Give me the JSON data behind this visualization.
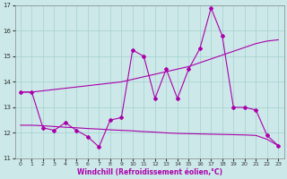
{
  "title": "",
  "xlabel": "Windchill (Refroidissement éolien,°C)",
  "ylabel": "",
  "xlim": [
    -0.5,
    23.5
  ],
  "ylim": [
    11,
    17
  ],
  "yticks": [
    11,
    12,
    13,
    14,
    15,
    16,
    17
  ],
  "xticks": [
    0,
    1,
    2,
    3,
    4,
    5,
    6,
    7,
    8,
    9,
    10,
    11,
    12,
    13,
    14,
    15,
    16,
    17,
    18,
    19,
    20,
    21,
    22,
    23
  ],
  "background_color": "#cce8e8",
  "grid_color": "#aad4d4",
  "line_color": "#aa00aa",
  "line1_x": [
    0,
    1,
    2,
    3,
    4,
    5,
    6,
    7,
    8,
    9,
    10,
    11,
    12,
    13,
    14,
    15,
    16,
    17,
    18,
    19,
    20,
    21,
    22,
    23
  ],
  "line1_y": [
    13.6,
    13.6,
    13.65,
    13.7,
    13.75,
    13.8,
    13.85,
    13.9,
    13.95,
    14.0,
    14.1,
    14.2,
    14.3,
    14.4,
    14.5,
    14.6,
    14.75,
    14.9,
    15.05,
    15.2,
    15.35,
    15.5,
    15.6,
    15.65
  ],
  "line2_x": [
    0,
    1,
    2,
    3,
    4,
    5,
    6,
    7,
    8,
    9,
    10,
    11,
    12,
    13,
    14,
    15,
    16,
    17,
    18,
    19,
    20,
    21,
    22,
    23
  ],
  "line2_y": [
    13.6,
    13.6,
    12.2,
    12.1,
    12.4,
    12.1,
    11.85,
    11.45,
    12.5,
    12.6,
    15.25,
    15.0,
    13.35,
    14.5,
    13.35,
    14.5,
    15.3,
    16.9,
    15.8,
    13.0,
    13.0,
    12.9,
    11.9,
    11.5
  ],
  "line3_x": [
    0,
    1,
    2,
    3,
    4,
    5,
    6,
    7,
    8,
    9,
    10,
    11,
    12,
    13,
    14,
    15,
    16,
    17,
    18,
    19,
    20,
    21,
    22,
    23
  ],
  "line3_y": [
    12.3,
    12.3,
    12.28,
    12.25,
    12.22,
    12.2,
    12.17,
    12.15,
    12.12,
    12.1,
    12.08,
    12.05,
    12.03,
    12.0,
    11.98,
    11.97,
    11.96,
    11.95,
    11.94,
    11.93,
    11.92,
    11.9,
    11.75,
    11.5
  ]
}
